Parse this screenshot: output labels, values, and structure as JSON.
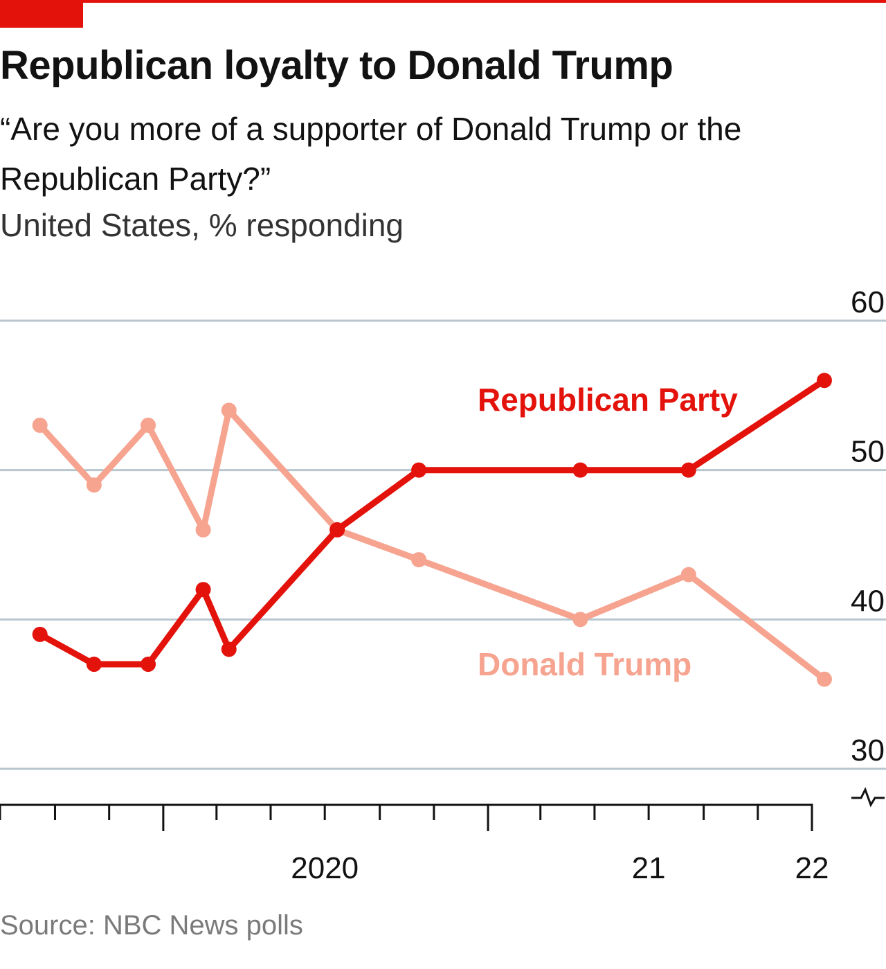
{
  "header": {
    "title": "Republican loyalty to Donald Trump",
    "subtitle": "“Are you more of a supporter of Donald Trump or the Republican Party?”",
    "units": "United States, % responding"
  },
  "footer": {
    "source": "Source: NBC News polls"
  },
  "colors": {
    "accent": "#e3120b",
    "republican_party": "#e3120b",
    "donald_trump": "#f6a38f",
    "gridline": "#b7c6cf",
    "axis": "#121212"
  },
  "chart_data": {
    "type": "line",
    "title": "Republican loyalty to Donald Trump",
    "subtitle": "“Are you more of a supporter of Donald Trump or the Republican Party?”",
    "units": "United States, % responding",
    "xlim": [
      "2019-07-01",
      "2022-01-01"
    ],
    "ylim": [
      30,
      60
    ],
    "y_ticks": [
      30,
      40,
      50,
      60
    ],
    "y_axis_side": "right",
    "y_axis_broken_at_zero": true,
    "x_tick_labels": [
      {
        "label": "2020",
        "x": "2020-01-01"
      },
      {
        "label": "21",
        "x": "2021-01-01"
      },
      {
        "label": "22",
        "x": "2022-01-01"
      }
    ],
    "grid": true,
    "legend": "direct labels",
    "series": [
      {
        "name": "Republican Party",
        "color": "#e3120b",
        "points": [
          {
            "x": "2019-08-15",
            "y": 39
          },
          {
            "x": "2019-10-15",
            "y": 37
          },
          {
            "x": "2019-12-15",
            "y": 37
          },
          {
            "x": "2020-02-15",
            "y": 42
          },
          {
            "x": "2020-03-15",
            "y": 38
          },
          {
            "x": "2020-07-15",
            "y": 46
          },
          {
            "x": "2020-10-15",
            "y": 50
          },
          {
            "x": "2021-04-15",
            "y": 50
          },
          {
            "x": "2021-08-15",
            "y": 50
          },
          {
            "x": "2022-01-15",
            "y": 56
          }
        ]
      },
      {
        "name": "Donald Trump",
        "color": "#f6a38f",
        "points": [
          {
            "x": "2019-08-15",
            "y": 53
          },
          {
            "x": "2019-10-15",
            "y": 49
          },
          {
            "x": "2019-12-15",
            "y": 53
          },
          {
            "x": "2020-02-15",
            "y": 46
          },
          {
            "x": "2020-03-15",
            "y": 54
          },
          {
            "x": "2020-07-15",
            "y": 46
          },
          {
            "x": "2020-10-15",
            "y": 44
          },
          {
            "x": "2021-04-15",
            "y": 40
          },
          {
            "x": "2021-08-15",
            "y": 43
          },
          {
            "x": "2022-01-15",
            "y": 36
          }
        ]
      }
    ]
  }
}
